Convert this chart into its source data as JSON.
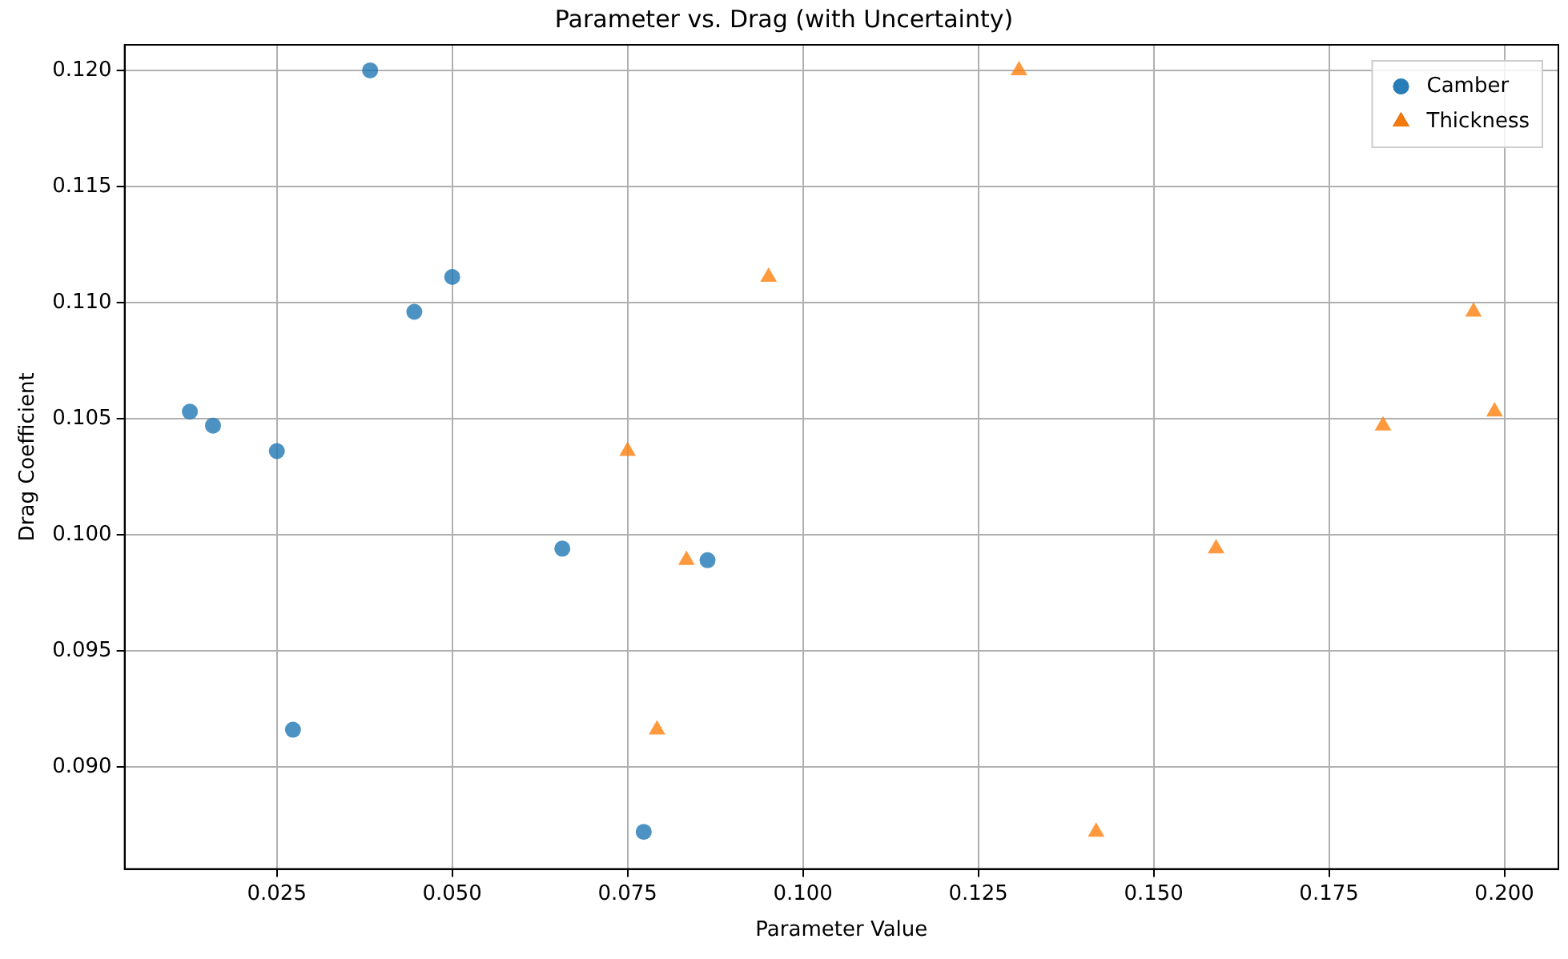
{
  "chart_data": {
    "type": "scatter",
    "title": "Parameter vs. Drag (with Uncertainty)",
    "xlabel": "Parameter Value",
    "ylabel": "Drag Coefficient",
    "xlim": [
      0.0033,
      0.2077
    ],
    "ylim": [
      0.0856,
      0.1211
    ],
    "xticks": [
      {
        "value": 0.025,
        "label": "0.025"
      },
      {
        "value": 0.05,
        "label": "0.050"
      },
      {
        "value": 0.075,
        "label": "0.075"
      },
      {
        "value": 0.1,
        "label": "0.100"
      },
      {
        "value": 0.125,
        "label": "0.125"
      },
      {
        "value": 0.15,
        "label": "0.150"
      },
      {
        "value": 0.175,
        "label": "0.175"
      },
      {
        "value": 0.2,
        "label": "0.200"
      }
    ],
    "yticks": [
      {
        "value": 0.09,
        "label": "0.090"
      },
      {
        "value": 0.095,
        "label": "0.095"
      },
      {
        "value": 0.1,
        "label": "0.100"
      },
      {
        "value": 0.105,
        "label": "0.105"
      },
      {
        "value": 0.11,
        "label": "0.110"
      },
      {
        "value": 0.115,
        "label": "0.115"
      },
      {
        "value": 0.12,
        "label": "0.120"
      }
    ],
    "grid": true,
    "legend": "top right",
    "series": [
      {
        "name": "Camber",
        "color": "#1f77b4",
        "marker": "circle",
        "x": [
          0.0126,
          0.0159,
          0.025,
          0.0273,
          0.0383,
          0.0446,
          0.05,
          0.0657,
          0.0864,
          0.0773
        ],
        "values": [
          0.1053,
          0.1047,
          0.1036,
          0.0916,
          0.12,
          0.1096,
          0.1111,
          0.0994,
          0.0989,
          0.0872
        ]
      },
      {
        "name": "Thickness",
        "color": "#ff7f0e",
        "marker": "triangle",
        "x": [
          0.075,
          0.0792,
          0.0834,
          0.0951,
          0.1308,
          0.1418,
          0.1589,
          0.1827,
          0.1956,
          0.1986
        ],
        "values": [
          0.1036,
          0.0916,
          0.0989,
          0.1111,
          0.12,
          0.0872,
          0.0994,
          0.1047,
          0.1096,
          0.1053
        ]
      }
    ]
  }
}
